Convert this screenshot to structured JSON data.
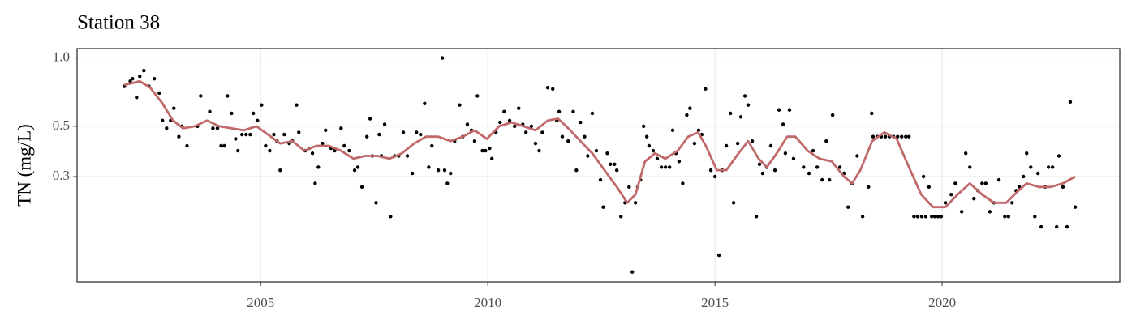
{
  "chart_data": {
    "type": "scatter",
    "title": "Station 38",
    "y_label": "TN (mg/L)",
    "xlim": [
      2000.96,
      2023.91
    ],
    "xticks": [
      2005,
      2010,
      2015,
      2020
    ],
    "ylim": [
      0.103,
      1.1
    ],
    "yticks": [
      0.3,
      0.5,
      {
        "value": 1,
        "label": "1.0"
      }
    ],
    "y_log": true,
    "grid": true,
    "series": [
      {
        "type": "scatter",
        "color": "#000000",
        "x": [
          2002.0,
          2002.13,
          2002.18,
          2002.27,
          2002.34,
          2002.43,
          2002.54,
          2002.66,
          2002.77,
          2002.84,
          2002.93,
          2003.02,
          2003.09,
          2003.2,
          2003.27,
          2003.38,
          2003.61,
          2003.68,
          2003.88,
          2003.95,
          2004.05,
          2004.13,
          2004.2,
          2004.27,
          2004.36,
          2004.45,
          2004.5,
          2004.59,
          2004.68,
          2004.77,
          2004.84,
          2004.93,
          2005.02,
          2005.11,
          2005.2,
          2005.29,
          2005.36,
          2005.43,
          2005.52,
          2005.63,
          2005.7,
          2005.79,
          2005.84,
          2005.98,
          2006.07,
          2006.14,
          2006.2,
          2006.27,
          2006.36,
          2006.43,
          2006.55,
          2006.63,
          2006.77,
          2006.84,
          2006.95,
          2007.07,
          2007.14,
          2007.23,
          2007.34,
          2007.41,
          2007.46,
          2007.54,
          2007.61,
          2007.66,
          2007.73,
          2007.86,
          2007.95,
          2008.04,
          2008.14,
          2008.23,
          2008.34,
          2008.43,
          2008.52,
          2008.61,
          2008.7,
          2008.77,
          2008.91,
          2009.0,
          2009.05,
          2009.11,
          2009.18,
          2009.27,
          2009.38,
          2009.45,
          2009.55,
          2009.64,
          2009.71,
          2009.77,
          2009.88,
          2009.95,
          2010.04,
          2010.09,
          2010.18,
          2010.27,
          2010.36,
          2010.48,
          2010.59,
          2010.68,
          2010.77,
          2010.84,
          2010.96,
          2011.05,
          2011.13,
          2011.2,
          2011.32,
          2011.43,
          2011.52,
          2011.57,
          2011.64,
          2011.77,
          2011.88,
          2011.95,
          2012.04,
          2012.13,
          2012.2,
          2012.3,
          2012.39,
          2012.48,
          2012.54,
          2012.63,
          2012.7,
          2012.79,
          2012.84,
          2012.93,
          2013.02,
          2013.11,
          2013.18,
          2013.25,
          2013.3,
          2013.36,
          2013.43,
          2013.5,
          2013.55,
          2013.64,
          2013.73,
          2013.82,
          2013.91,
          2014.0,
          2014.07,
          2014.14,
          2014.21,
          2014.29,
          2014.38,
          2014.45,
          2014.55,
          2014.64,
          2014.71,
          2014.79,
          2014.91,
          2015.0,
          2015.09,
          2015.16,
          2015.25,
          2015.34,
          2015.41,
          2015.5,
          2015.57,
          2015.66,
          2015.73,
          2015.82,
          2015.91,
          2015.98,
          2016.05,
          2016.14,
          2016.23,
          2016.32,
          2016.41,
          2016.5,
          2016.55,
          2016.64,
          2016.73,
          2016.95,
          2017.07,
          2017.16,
          2017.25,
          2017.36,
          2017.45,
          2017.52,
          2017.59,
          2017.75,
          2017.84,
          2017.93,
          2018.02,
          2018.13,
          2018.25,
          2018.38,
          2018.45,
          2018.48,
          2018.57,
          2018.66,
          2018.75,
          2018.84,
          2018.93,
          2019.02,
          2019.11,
          2019.2,
          2019.27,
          2019.38,
          2019.46,
          2019.55,
          2019.59,
          2019.64,
          2019.71,
          2019.77,
          2019.84,
          2019.91,
          2019.98,
          2020.07,
          2020.2,
          2020.29,
          2020.43,
          2020.52,
          2020.61,
          2020.7,
          2020.79,
          2020.88,
          2020.96,
          2021.05,
          2021.14,
          2021.25,
          2021.38,
          2021.46,
          2021.54,
          2021.63,
          2021.7,
          2021.79,
          2021.86,
          2021.95,
          2022.04,
          2022.11,
          2022.18,
          2022.27,
          2022.34,
          2022.43,
          2022.52,
          2022.57,
          2022.66,
          2022.75,
          2022.82,
          2022.93
        ],
        "values": [
          0.75,
          0.79,
          0.81,
          0.67,
          0.83,
          0.88,
          0.75,
          0.81,
          0.7,
          0.53,
          0.49,
          0.53,
          0.6,
          0.45,
          0.5,
          0.41,
          0.5,
          0.68,
          0.58,
          0.49,
          0.49,
          0.41,
          0.41,
          0.68,
          0.57,
          0.44,
          0.39,
          0.46,
          0.46,
          0.46,
          0.57,
          0.53,
          0.62,
          0.41,
          0.39,
          0.46,
          0.43,
          0.32,
          0.46,
          0.42,
          0.43,
          0.62,
          0.47,
          0.39,
          0.4,
          0.38,
          0.28,
          0.33,
          0.42,
          0.48,
          0.4,
          0.39,
          0.49,
          0.41,
          0.39,
          0.32,
          0.33,
          0.27,
          0.45,
          0.54,
          0.37,
          0.23,
          0.46,
          0.37,
          0.51,
          0.2,
          0.37,
          0.37,
          0.47,
          0.37,
          0.31,
          0.47,
          0.46,
          0.63,
          0.33,
          0.41,
          0.32,
          1.0,
          0.32,
          0.28,
          0.31,
          0.43,
          0.62,
          0.45,
          0.51,
          0.48,
          0.43,
          0.68,
          0.39,
          0.39,
          0.4,
          0.36,
          0.47,
          0.52,
          0.58,
          0.53,
          0.5,
          0.6,
          0.51,
          0.47,
          0.5,
          0.42,
          0.39,
          0.47,
          0.74,
          0.73,
          0.53,
          0.58,
          0.45,
          0.43,
          0.58,
          0.32,
          0.52,
          0.45,
          0.37,
          0.57,
          0.39,
          0.29,
          0.22,
          0.38,
          0.34,
          0.34,
          0.32,
          0.2,
          0.23,
          0.27,
          0.114,
          0.23,
          0.27,
          0.29,
          0.5,
          0.45,
          0.41,
          0.39,
          0.36,
          0.33,
          0.33,
          0.33,
          0.48,
          0.38,
          0.35,
          0.28,
          0.56,
          0.6,
          0.42,
          0.48,
          0.46,
          0.73,
          0.32,
          0.3,
          0.135,
          0.32,
          0.41,
          0.57,
          0.23,
          0.42,
          0.55,
          0.68,
          0.62,
          0.43,
          0.2,
          0.34,
          0.31,
          0.33,
          0.41,
          0.32,
          0.59,
          0.51,
          0.38,
          0.59,
          0.36,
          0.33,
          0.31,
          0.39,
          0.33,
          0.29,
          0.43,
          0.29,
          0.56,
          0.33,
          0.31,
          0.22,
          0.28,
          0.37,
          0.2,
          0.27,
          0.57,
          0.45,
          0.45,
          0.45,
          0.45,
          0.45,
          0.45,
          0.45,
          0.45,
          0.45,
          0.45,
          0.2,
          0.2,
          0.2,
          0.3,
          0.2,
          0.27,
          0.2,
          0.2,
          0.2,
          0.2,
          0.23,
          0.25,
          0.28,
          0.21,
          0.38,
          0.33,
          0.24,
          0.26,
          0.28,
          0.28,
          0.21,
          0.23,
          0.29,
          0.2,
          0.2,
          0.23,
          0.26,
          0.27,
          0.3,
          0.38,
          0.33,
          0.2,
          0.31,
          0.18,
          0.27,
          0.33,
          0.33,
          0.18,
          0.37,
          0.27,
          0.18,
          0.64,
          0.22
        ]
      },
      {
        "type": "line",
        "color": "#c0696b",
        "x": [
          2002.0,
          2002.34,
          2002.57,
          2002.84,
          2003.07,
          2003.29,
          2003.55,
          2003.82,
          2004.09,
          2004.36,
          2004.63,
          2004.91,
          2005.16,
          2005.43,
          2005.7,
          2005.96,
          2006.23,
          2006.5,
          2006.77,
          2007.04,
          2007.3,
          2007.57,
          2007.84,
          2008.11,
          2008.38,
          2008.64,
          2008.91,
          2009.18,
          2009.45,
          2009.71,
          2009.98,
          2010.25,
          2010.52,
          2010.79,
          2011.05,
          2011.32,
          2011.55,
          2011.77,
          2012.04,
          2012.3,
          2012.57,
          2012.84,
          2013.07,
          2013.25,
          2013.46,
          2013.68,
          2013.91,
          2014.18,
          2014.41,
          2014.63,
          2014.8,
          2015.04,
          2015.25,
          2015.52,
          2015.73,
          2015.96,
          2016.14,
          2016.36,
          2016.59,
          2016.77,
          2017.04,
          2017.3,
          2017.57,
          2017.84,
          2018.02,
          2018.2,
          2018.46,
          2018.73,
          2019.0,
          2019.27,
          2019.54,
          2019.8,
          2020.07,
          2020.34,
          2020.61,
          2020.88,
          2021.14,
          2021.41,
          2021.68,
          2021.86,
          2022.13,
          2022.39,
          2022.66,
          2022.93
        ],
        "values": [
          0.76,
          0.79,
          0.74,
          0.63,
          0.53,
          0.49,
          0.5,
          0.53,
          0.5,
          0.49,
          0.48,
          0.5,
          0.46,
          0.42,
          0.43,
          0.39,
          0.41,
          0.41,
          0.39,
          0.36,
          0.37,
          0.37,
          0.36,
          0.38,
          0.42,
          0.45,
          0.45,
          0.43,
          0.45,
          0.48,
          0.44,
          0.5,
          0.52,
          0.5,
          0.48,
          0.53,
          0.54,
          0.49,
          0.43,
          0.38,
          0.32,
          0.27,
          0.23,
          0.25,
          0.35,
          0.38,
          0.36,
          0.39,
          0.45,
          0.47,
          0.41,
          0.32,
          0.32,
          0.38,
          0.43,
          0.36,
          0.33,
          0.38,
          0.45,
          0.45,
          0.39,
          0.36,
          0.35,
          0.3,
          0.28,
          0.32,
          0.43,
          0.47,
          0.44,
          0.33,
          0.25,
          0.22,
          0.22,
          0.25,
          0.28,
          0.25,
          0.23,
          0.23,
          0.26,
          0.28,
          0.27,
          0.27,
          0.28,
          0.3
        ]
      }
    ]
  }
}
